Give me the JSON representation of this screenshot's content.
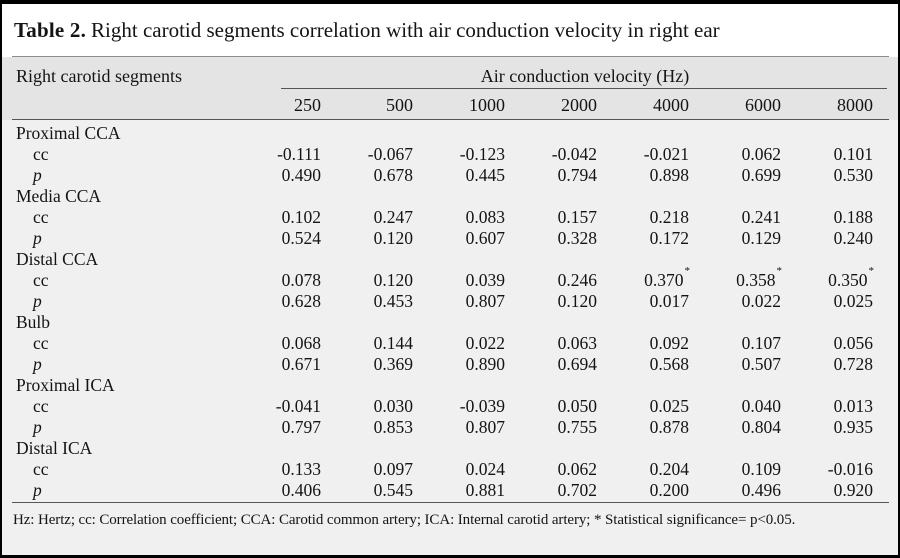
{
  "colors": {
    "frame": "#000000",
    "title_bg": "#ffffff",
    "header_bg": "#e4e4e4",
    "body_bg": "#f0f0f0",
    "rule": "#555555"
  },
  "table": {
    "title_label": "Table 2.",
    "title_text": "Right carotid segments correlation with air conduction velocity in right ear",
    "header": {
      "row_label": "Right carotid segments",
      "span_label": "Air conduction velocity (Hz)",
      "frequencies": [
        "250",
        "500",
        "1000",
        "2000",
        "4000",
        "6000",
        "8000"
      ]
    },
    "row_labels": {
      "cc": "cc",
      "p": "p"
    },
    "groups": [
      {
        "label": "Proximal CCA",
        "cc": [
          "-0.111",
          "-0.067",
          "-0.123",
          "-0.042",
          "-0.021",
          "0.062",
          "0.101"
        ],
        "p": [
          "0.490",
          "0.678",
          "0.445",
          "0.794",
          "0.898",
          "0.699",
          "0.530"
        ]
      },
      {
        "label": "Media CCA",
        "cc": [
          "0.102",
          "0.247",
          "0.083",
          "0.157",
          "0.218",
          "0.241",
          "0.188"
        ],
        "p": [
          "0.524",
          "0.120",
          "0.607",
          "0.328",
          "0.172",
          "0.129",
          "0.240"
        ]
      },
      {
        "label": "Distal CCA",
        "cc": [
          "0.078",
          "0.120",
          "0.039",
          "0.246",
          "0.370*",
          "0.358*",
          "0.350*"
        ],
        "p": [
          "0.628",
          "0.453",
          "0.807",
          "0.120",
          "0.017",
          "0.022",
          "0.025"
        ]
      },
      {
        "label": "Bulb",
        "cc": [
          "0.068",
          "0.144",
          "0.022",
          "0.063",
          "0.092",
          "0.107",
          "0.056"
        ],
        "p": [
          "0.671",
          "0.369",
          "0.890",
          "0.694",
          "0.568",
          "0.507",
          "0.728"
        ]
      },
      {
        "label": "Proximal ICA",
        "cc": [
          "-0.041",
          "0.030",
          "-0.039",
          "0.050",
          "0.025",
          "0.040",
          "0.013"
        ],
        "p": [
          "0.797",
          "0.853",
          "0.807",
          "0.755",
          "0.878",
          "0.804",
          "0.935"
        ]
      },
      {
        "label": "Distal ICA",
        "cc": [
          "0.133",
          "0.097",
          "0.024",
          "0.062",
          "0.204",
          "0.109",
          "-0.016"
        ],
        "p": [
          "0.406",
          "0.545",
          "0.881",
          "0.702",
          "0.200",
          "0.496",
          "0.920"
        ]
      }
    ],
    "footnote": "Hz: Hertz; cc: Correlation coefficient; CCA: Carotid common artery; ICA: Internal carotid artery; * Statistical significance= p<0.05."
  }
}
